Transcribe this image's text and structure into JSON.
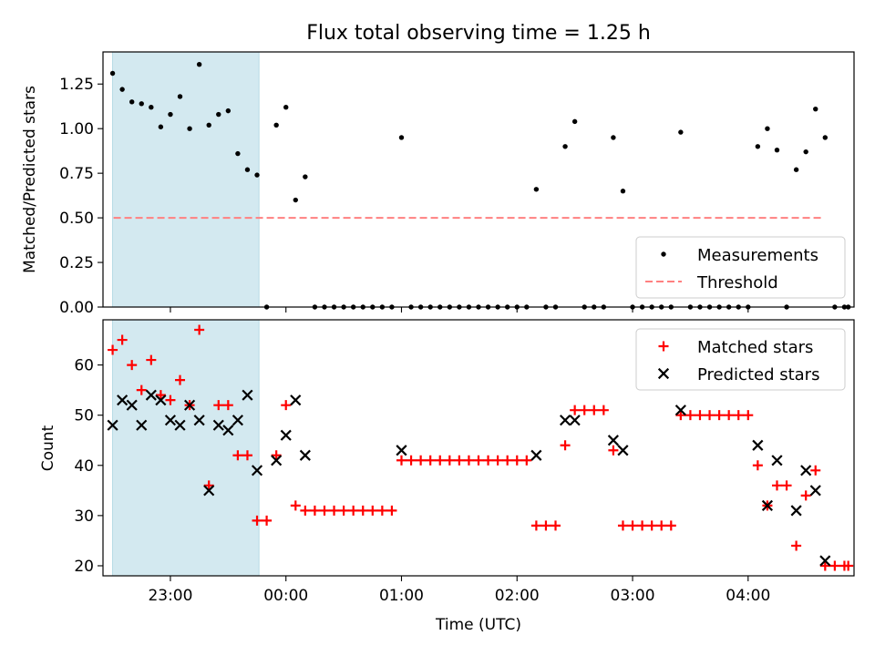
{
  "chart_data": [
    {
      "type": "scatter",
      "title": "Flux total observing time = 1.25 h",
      "ylabel": "Matched/Predicted stars",
      "xlim": [
        "22:25",
        "04:55"
      ],
      "ylim": [
        0,
        1.43
      ],
      "y_ticks": [
        "0.00",
        "0.25",
        "0.50",
        "0.75",
        "1.00",
        "1.25"
      ],
      "highlight_span": [
        "22:30",
        "23:46"
      ],
      "highlight_color": "#d3e9f0",
      "legend_location": "lower right",
      "series": [
        {
          "name": "Measurements",
          "marker": "dot",
          "color": "#000000",
          "points": [
            [
              "22:30",
              1.31
            ],
            [
              "22:35",
              1.22
            ],
            [
              "22:40",
              1.15
            ],
            [
              "22:45",
              1.14
            ],
            [
              "22:50",
              1.12
            ],
            [
              "22:55",
              1.01
            ],
            [
              "23:00",
              1.08
            ],
            [
              "23:05",
              1.18
            ],
            [
              "23:10",
              1.0
            ],
            [
              "23:15",
              1.36
            ],
            [
              "23:20",
              1.02
            ],
            [
              "23:25",
              1.08
            ],
            [
              "23:30",
              1.1
            ],
            [
              "23:35",
              0.86
            ],
            [
              "23:40",
              0.77
            ],
            [
              "23:45",
              0.74
            ],
            [
              "23:50",
              0.0
            ],
            [
              "23:55",
              1.02
            ],
            [
              "00:00",
              1.12
            ],
            [
              "00:05",
              0.6
            ],
            [
              "00:10",
              0.73
            ],
            [
              "00:15",
              0.0
            ],
            [
              "00:20",
              0.0
            ],
            [
              "00:25",
              0.0
            ],
            [
              "00:30",
              0.0
            ],
            [
              "00:35",
              0.0
            ],
            [
              "00:40",
              0.0
            ],
            [
              "00:45",
              0.0
            ],
            [
              "00:50",
              0.0
            ],
            [
              "00:55",
              0.0
            ],
            [
              "01:00",
              0.95
            ],
            [
              "01:05",
              0.0
            ],
            [
              "01:10",
              0.0
            ],
            [
              "01:15",
              0.0
            ],
            [
              "01:20",
              0.0
            ],
            [
              "01:25",
              0.0
            ],
            [
              "01:30",
              0.0
            ],
            [
              "01:35",
              0.0
            ],
            [
              "01:40",
              0.0
            ],
            [
              "01:45",
              0.0
            ],
            [
              "01:50",
              0.0
            ],
            [
              "01:55",
              0.0
            ],
            [
              "02:00",
              0.0
            ],
            [
              "02:05",
              0.0
            ],
            [
              "02:10",
              0.66
            ],
            [
              "02:15",
              0.0
            ],
            [
              "02:20",
              0.0
            ],
            [
              "02:25",
              0.9
            ],
            [
              "02:30",
              1.04
            ],
            [
              "02:35",
              0.0
            ],
            [
              "02:40",
              0.0
            ],
            [
              "02:45",
              0.0
            ],
            [
              "02:50",
              0.95
            ],
            [
              "02:55",
              0.65
            ],
            [
              "03:00",
              0.0
            ],
            [
              "03:05",
              0.0
            ],
            [
              "03:10",
              0.0
            ],
            [
              "03:15",
              0.0
            ],
            [
              "03:20",
              0.0
            ],
            [
              "03:25",
              0.98
            ],
            [
              "03:30",
              0.0
            ],
            [
              "03:35",
              0.0
            ],
            [
              "03:40",
              0.0
            ],
            [
              "03:45",
              0.0
            ],
            [
              "03:50",
              0.0
            ],
            [
              "03:55",
              0.0
            ],
            [
              "04:00",
              0.0
            ],
            [
              "04:05",
              0.9
            ],
            [
              "04:10",
              1.0
            ],
            [
              "04:15",
              0.88
            ],
            [
              "04:20",
              0.0
            ],
            [
              "04:25",
              0.77
            ],
            [
              "04:30",
              0.87
            ],
            [
              "04:35",
              1.11
            ],
            [
              "04:40",
              0.95
            ],
            [
              "04:45",
              0.0
            ],
            [
              "04:50",
              0.0
            ],
            [
              "04:52",
              0.0
            ]
          ]
        },
        {
          "name": "Threshold",
          "marker": "dashed-line",
          "color": "#ff8080",
          "points": [
            [
              "22:30",
              0.5
            ],
            [
              "04:55",
              0.5
            ]
          ]
        }
      ]
    },
    {
      "type": "scatter",
      "xlabel": "Time (UTC)",
      "ylabel": "Count",
      "xlim": [
        "22:25",
        "04:55"
      ],
      "ylim": [
        18,
        69
      ],
      "y_ticks": [
        "20",
        "30",
        "40",
        "50",
        "60"
      ],
      "x_ticks": [
        "23:00",
        "00:00",
        "01:00",
        "02:00",
        "03:00",
        "04:00"
      ],
      "highlight_span": [
        "22:30",
        "23:46"
      ],
      "highlight_color": "#d3e9f0",
      "legend_location": "upper right",
      "series": [
        {
          "name": "Matched stars",
          "marker": "plus",
          "color": "#ff0000",
          "points": [
            [
              "22:30",
              63
            ],
            [
              "22:35",
              65
            ],
            [
              "22:40",
              60
            ],
            [
              "22:45",
              55
            ],
            [
              "22:50",
              61
            ],
            [
              "22:55",
              54
            ],
            [
              "23:00",
              53
            ],
            [
              "23:05",
              57
            ],
            [
              "23:10",
              52
            ],
            [
              "23:15",
              67
            ],
            [
              "23:20",
              36
            ],
            [
              "23:25",
              52
            ],
            [
              "23:30",
              52
            ],
            [
              "23:35",
              42
            ],
            [
              "23:40",
              42
            ],
            [
              "23:45",
              29
            ],
            [
              "23:50",
              29
            ],
            [
              "23:55",
              42
            ],
            [
              "00:00",
              52
            ],
            [
              "00:05",
              32
            ],
            [
              "00:10",
              31
            ],
            [
              "00:15",
              31
            ],
            [
              "00:20",
              31
            ],
            [
              "00:25",
              31
            ],
            [
              "00:30",
              31
            ],
            [
              "00:35",
              31
            ],
            [
              "00:40",
              31
            ],
            [
              "00:45",
              31
            ],
            [
              "00:50",
              31
            ],
            [
              "00:55",
              31
            ],
            [
              "01:00",
              41
            ],
            [
              "01:05",
              41
            ],
            [
              "01:10",
              41
            ],
            [
              "01:15",
              41
            ],
            [
              "01:20",
              41
            ],
            [
              "01:25",
              41
            ],
            [
              "01:30",
              41
            ],
            [
              "01:35",
              41
            ],
            [
              "01:40",
              41
            ],
            [
              "01:45",
              41
            ],
            [
              "01:50",
              41
            ],
            [
              "01:55",
              41
            ],
            [
              "02:00",
              41
            ],
            [
              "02:05",
              41
            ],
            [
              "02:10",
              28
            ],
            [
              "02:15",
              28
            ],
            [
              "02:20",
              28
            ],
            [
              "02:25",
              44
            ],
            [
              "02:30",
              51
            ],
            [
              "02:35",
              51
            ],
            [
              "02:40",
              51
            ],
            [
              "02:45",
              51
            ],
            [
              "02:50",
              43
            ],
            [
              "02:55",
              28
            ],
            [
              "03:00",
              28
            ],
            [
              "03:05",
              28
            ],
            [
              "03:10",
              28
            ],
            [
              "03:15",
              28
            ],
            [
              "03:20",
              28
            ],
            [
              "03:25",
              50
            ],
            [
              "03:30",
              50
            ],
            [
              "03:35",
              50
            ],
            [
              "03:40",
              50
            ],
            [
              "03:45",
              50
            ],
            [
              "03:50",
              50
            ],
            [
              "03:55",
              50
            ],
            [
              "04:00",
              50
            ],
            [
              "04:05",
              40
            ],
            [
              "04:10",
              32
            ],
            [
              "04:15",
              36
            ],
            [
              "04:20",
              36
            ],
            [
              "04:25",
              24
            ],
            [
              "04:30",
              34
            ],
            [
              "04:35",
              39
            ],
            [
              "04:40",
              20
            ],
            [
              "04:45",
              20
            ],
            [
              "04:50",
              20
            ],
            [
              "04:52",
              20
            ]
          ]
        },
        {
          "name": "Predicted stars",
          "marker": "x",
          "color": "#000000",
          "points": [
            [
              "22:30",
              48
            ],
            [
              "22:35",
              53
            ],
            [
              "22:40",
              52
            ],
            [
              "22:45",
              48
            ],
            [
              "22:50",
              54
            ],
            [
              "22:55",
              53
            ],
            [
              "23:00",
              49
            ],
            [
              "23:05",
              48
            ],
            [
              "23:10",
              52
            ],
            [
              "23:15",
              49
            ],
            [
              "23:20",
              35
            ],
            [
              "23:25",
              48
            ],
            [
              "23:30",
              47
            ],
            [
              "23:35",
              49
            ],
            [
              "23:40",
              54
            ],
            [
              "23:45",
              39
            ],
            [
              "23:55",
              41
            ],
            [
              "00:00",
              46
            ],
            [
              "00:05",
              53
            ],
            [
              "00:10",
              42
            ],
            [
              "01:00",
              43
            ],
            [
              "02:10",
              42
            ],
            [
              "02:25",
              49
            ],
            [
              "02:30",
              49
            ],
            [
              "02:50",
              45
            ],
            [
              "02:55",
              43
            ],
            [
              "03:25",
              51
            ],
            [
              "04:05",
              44
            ],
            [
              "04:10",
              32
            ],
            [
              "04:15",
              41
            ],
            [
              "04:25",
              31
            ],
            [
              "04:30",
              39
            ],
            [
              "04:35",
              35
            ],
            [
              "04:40",
              21
            ]
          ]
        }
      ]
    }
  ]
}
